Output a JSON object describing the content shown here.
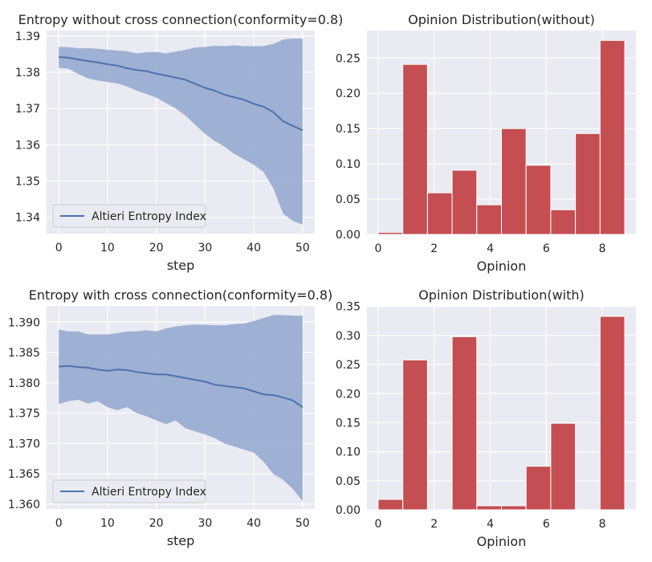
{
  "colors": {
    "panel_bg": "#eaeaf2",
    "grid": "#ffffff",
    "line": "#4c72b0",
    "band": "#9aaed2",
    "bar": "#c44e52",
    "bar_edge": "#ffffff"
  },
  "chart_data": [
    {
      "type": "line",
      "title": "Entropy without cross connection(conformity=0.8)",
      "xlabel": "step",
      "ylabel": "",
      "xlim": [
        -2.5,
        52.5
      ],
      "ylim": [
        1.3355,
        1.3915
      ],
      "xticks": [
        0,
        10,
        20,
        30,
        40,
        50
      ],
      "xtick_labels": [
        "0",
        "10",
        "20",
        "30",
        "40",
        "50"
      ],
      "yticks": [
        1.34,
        1.35,
        1.36,
        1.37,
        1.38,
        1.39
      ],
      "ytick_labels": [
        "1.34",
        "1.35",
        "1.36",
        "1.37",
        "1.38",
        "1.39"
      ],
      "legend": {
        "label": "Altieri Entropy Index",
        "position": "lower-left"
      },
      "grid": true,
      "x": [
        0,
        2,
        4,
        6,
        8,
        10,
        12,
        14,
        16,
        18,
        20,
        22,
        24,
        26,
        28,
        30,
        32,
        34,
        36,
        38,
        40,
        42,
        44,
        46,
        48,
        50
      ],
      "mean": [
        1.3842,
        1.384,
        1.3835,
        1.3831,
        1.3827,
        1.3822,
        1.3818,
        1.3811,
        1.3806,
        1.3803,
        1.3796,
        1.3791,
        1.3785,
        1.3779,
        1.3768,
        1.3757,
        1.3749,
        1.3738,
        1.3731,
        1.3724,
        1.3713,
        1.3705,
        1.369,
        1.3665,
        1.3652,
        1.364
      ],
      "upper": [
        1.387,
        1.3869,
        1.3866,
        1.3866,
        1.3865,
        1.3862,
        1.386,
        1.3858,
        1.3852,
        1.3855,
        1.3856,
        1.3852,
        1.3857,
        1.3862,
        1.3868,
        1.387,
        1.3873,
        1.3872,
        1.3874,
        1.3872,
        1.3872,
        1.3872,
        1.3878,
        1.389,
        1.3893,
        1.3893
      ],
      "lower": [
        1.3812,
        1.381,
        1.3795,
        1.3783,
        1.3777,
        1.3773,
        1.3769,
        1.3761,
        1.3749,
        1.374,
        1.373,
        1.3715,
        1.37,
        1.368,
        1.3655,
        1.363,
        1.361,
        1.3595,
        1.3575,
        1.356,
        1.3545,
        1.3525,
        1.348,
        1.341,
        1.339,
        1.338
      ]
    },
    {
      "type": "bar",
      "title": "Opinion Distribution(without)",
      "xlabel": "Opinion",
      "ylabel": "",
      "xlim": [
        -0.4,
        9.2
      ],
      "ylim": [
        0,
        0.289
      ],
      "xticks": [
        0,
        2,
        4,
        6,
        8
      ],
      "xtick_labels": [
        "0",
        "2",
        "4",
        "6",
        "8"
      ],
      "yticks": [
        0.0,
        0.05,
        0.1,
        0.15,
        0.2,
        0.25
      ],
      "ytick_labels": [
        "0.00",
        "0.05",
        "0.10",
        "0.15",
        "0.20",
        "0.25"
      ],
      "grid": true,
      "bin_edges": [
        0.0,
        0.88,
        1.76,
        2.64,
        3.52,
        4.4,
        5.28,
        6.16,
        7.04,
        7.92,
        8.8
      ],
      "values": [
        0.003,
        0.241,
        0.059,
        0.091,
        0.042,
        0.15,
        0.098,
        0.035,
        0.143,
        0.275
      ]
    },
    {
      "type": "line",
      "title": "Entropy with cross connection(conformity=0.8)",
      "xlabel": "step",
      "ylabel": "",
      "xlim": [
        -2.5,
        52.5
      ],
      "ylim": [
        1.3592,
        1.3927
      ],
      "xticks": [
        0,
        10,
        20,
        30,
        40,
        50
      ],
      "xtick_labels": [
        "0",
        "10",
        "20",
        "30",
        "40",
        "50"
      ],
      "yticks": [
        1.36,
        1.365,
        1.37,
        1.375,
        1.38,
        1.385,
        1.39
      ],
      "ytick_labels": [
        "1.360",
        "1.365",
        "1.370",
        "1.375",
        "1.380",
        "1.385",
        "1.390"
      ],
      "legend": {
        "label": "Altieri Entropy Index",
        "position": "lower-left"
      },
      "grid": true,
      "x": [
        0,
        2,
        4,
        6,
        8,
        10,
        12,
        14,
        16,
        18,
        20,
        22,
        24,
        26,
        28,
        30,
        32,
        34,
        36,
        38,
        40,
        42,
        44,
        46,
        48,
        50
      ],
      "mean": [
        1.3827,
        1.3828,
        1.3826,
        1.3825,
        1.3822,
        1.382,
        1.3822,
        1.3821,
        1.3818,
        1.3816,
        1.3814,
        1.3814,
        1.3811,
        1.3808,
        1.3805,
        1.3802,
        1.3797,
        1.3795,
        1.3793,
        1.3791,
        1.3786,
        1.3781,
        1.378,
        1.3776,
        1.3771,
        1.376
      ],
      "upper": [
        1.3888,
        1.3885,
        1.3885,
        1.388,
        1.388,
        1.388,
        1.3882,
        1.3885,
        1.3885,
        1.3887,
        1.3885,
        1.389,
        1.3893,
        1.3895,
        1.3896,
        1.3896,
        1.3895,
        1.3895,
        1.3897,
        1.3898,
        1.3902,
        1.3907,
        1.3912,
        1.3912,
        1.3911,
        1.3911
      ],
      "lower": [
        1.3765,
        1.377,
        1.3772,
        1.3766,
        1.377,
        1.376,
        1.3755,
        1.376,
        1.375,
        1.3745,
        1.3738,
        1.3732,
        1.3738,
        1.3725,
        1.372,
        1.3715,
        1.3709,
        1.37,
        1.3695,
        1.369,
        1.3685,
        1.367,
        1.365,
        1.364,
        1.3625,
        1.3605
      ]
    },
    {
      "type": "bar",
      "title": "Opinion Distribution(with)",
      "xlabel": "Opinion",
      "ylabel": "",
      "xlim": [
        -0.4,
        9.2
      ],
      "ylim": [
        0,
        0.351
      ],
      "xticks": [
        0,
        2,
        4,
        6,
        8
      ],
      "xtick_labels": [
        "0",
        "2",
        "4",
        "6",
        "8"
      ],
      "yticks": [
        0.0,
        0.05,
        0.1,
        0.15,
        0.2,
        0.25,
        0.3,
        0.35
      ],
      "ytick_labels": [
        "0.00",
        "0.05",
        "0.10",
        "0.15",
        "0.20",
        "0.25",
        "0.30",
        "0.35"
      ],
      "grid": true,
      "bin_edges": [
        0.0,
        0.88,
        1.76,
        2.64,
        3.52,
        4.4,
        5.28,
        6.16,
        7.04,
        7.92,
        8.8
      ],
      "values": [
        0.018,
        0.258,
        0.0,
        0.298,
        0.007,
        0.007,
        0.075,
        0.149,
        0.0,
        0.333
      ]
    }
  ]
}
